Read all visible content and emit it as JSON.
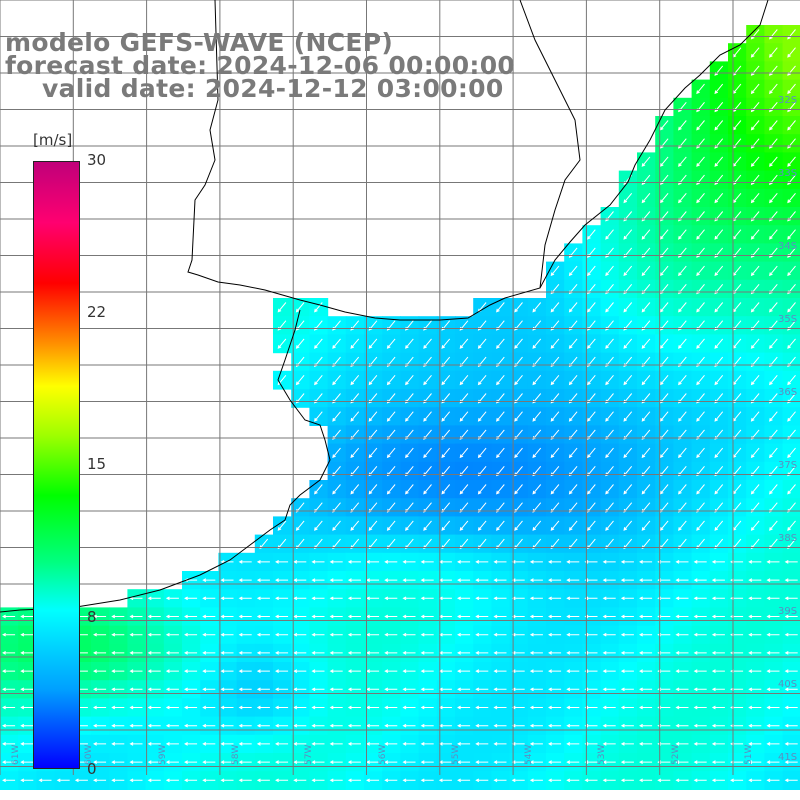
{
  "title": {
    "line1": "modelo GEFS-WAVE (NCEP)",
    "line2": "forecast date: 2024-12-06 00:00:00",
    "line3": "valid date: 2024-12-12 03:00:00"
  },
  "colorbar": {
    "unit": "[m/s]",
    "ticks": [
      "30",
      "22",
      "15",
      "8",
      "0"
    ],
    "colors": [
      "#0000ff",
      "#00a0ff",
      "#00ffff",
      "#00ff00",
      "#ffff00",
      "#ff9000",
      "#ff0000",
      "#c0007a"
    ]
  },
  "lat_labels": [
    "32S",
    "33S",
    "34S",
    "35S",
    "36S",
    "37S",
    "38S",
    "39S",
    "40S",
    "41S"
  ],
  "lon_labels": [
    "61W",
    "60W",
    "59W",
    "58W",
    "57W",
    "56W",
    "55W",
    "54W",
    "53W",
    "52W",
    "51W"
  ],
  "wind_field": {
    "variable": "wind speed and direction",
    "units": "m/s",
    "range": [
      0,
      30
    ],
    "direction": "mostly from the northeast/east, pointing southwest/west"
  }
}
